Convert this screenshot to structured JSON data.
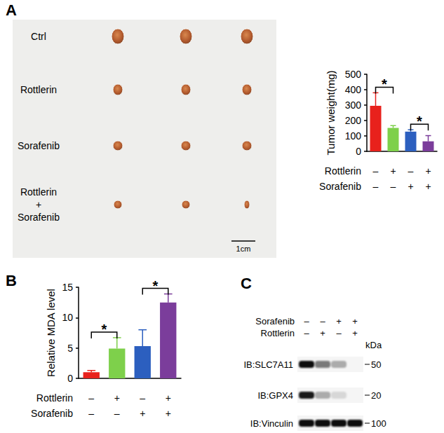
{
  "panels": [
    "A",
    "B",
    "C"
  ],
  "photo": {
    "rows": [
      "Ctrl",
      "Rottlerin",
      "Sorafenib",
      "Rottlerin\n+\nSorafenib"
    ],
    "scale_bar": "1cm"
  },
  "chart_data": [
    {
      "type": "bar",
      "y_label": "Tumor weight(mg)",
      "categories": [
        null,
        null,
        null,
        null
      ],
      "values": [
        295,
        152,
        128,
        65
      ],
      "errors": [
        85,
        15,
        12,
        37
      ],
      "colors": [
        "#e8211c",
        "#7ed04b",
        "#2c5fbf",
        "#7b3d9b"
      ],
      "ylim": [
        0,
        500
      ],
      "yticks": [
        0,
        100,
        200,
        300,
        400,
        500
      ],
      "grid": false,
      "treatments": [
        {
          "label": "Rottlerin",
          "signs": [
            "–",
            "+",
            "–",
            "+"
          ]
        },
        {
          "label": "Sorafenib",
          "signs": [
            "–",
            "–",
            "+",
            "+"
          ]
        }
      ],
      "annotations": [
        {
          "from": 0,
          "to": 1,
          "text": "*"
        },
        {
          "from": 2,
          "to": 3,
          "text": "*"
        }
      ]
    },
    {
      "type": "bar",
      "y_label": "Relative MDA level",
      "categories": [
        null,
        null,
        null,
        null
      ],
      "values": [
        1.0,
        4.9,
        5.3,
        12.5
      ],
      "errors": [
        0.3,
        1.8,
        2.7,
        1.4
      ],
      "colors": [
        "#e8211c",
        "#7ed04b",
        "#2c5fbf",
        "#7b3d9b"
      ],
      "ylim": [
        0,
        15
      ],
      "yticks": [
        0,
        5,
        10,
        15
      ],
      "grid": false,
      "treatments": [
        {
          "label": "Rottlerin",
          "signs": [
            "–",
            "+",
            "–",
            "+"
          ]
        },
        {
          "label": "Sorafenib",
          "signs": [
            "–",
            "–",
            "+",
            "+"
          ]
        }
      ],
      "annotations": [
        {
          "from": 0,
          "to": 1,
          "text": "*"
        },
        {
          "from": 2,
          "to": 3,
          "text": "*"
        }
      ]
    }
  ],
  "blot": {
    "treatments": [
      {
        "label": "Sorafenib",
        "signs": [
          "–",
          "–",
          "+",
          "+"
        ]
      },
      {
        "label": "Rottlerin",
        "signs": [
          "–",
          "+",
          "–",
          "+"
        ]
      }
    ],
    "unit": "kDa",
    "bands": [
      {
        "label": "IB:SLC7A11",
        "marker": 50,
        "intensity": [
          1.0,
          0.55,
          0.3,
          0.0
        ]
      },
      {
        "label": "IB:GPX4",
        "marker": 20,
        "intensity": [
          0.95,
          0.3,
          0.12,
          0.0
        ]
      },
      {
        "label": "IB:Vinculin",
        "marker": 100,
        "intensity": [
          1.0,
          1.0,
          1.0,
          1.0
        ]
      }
    ]
  }
}
